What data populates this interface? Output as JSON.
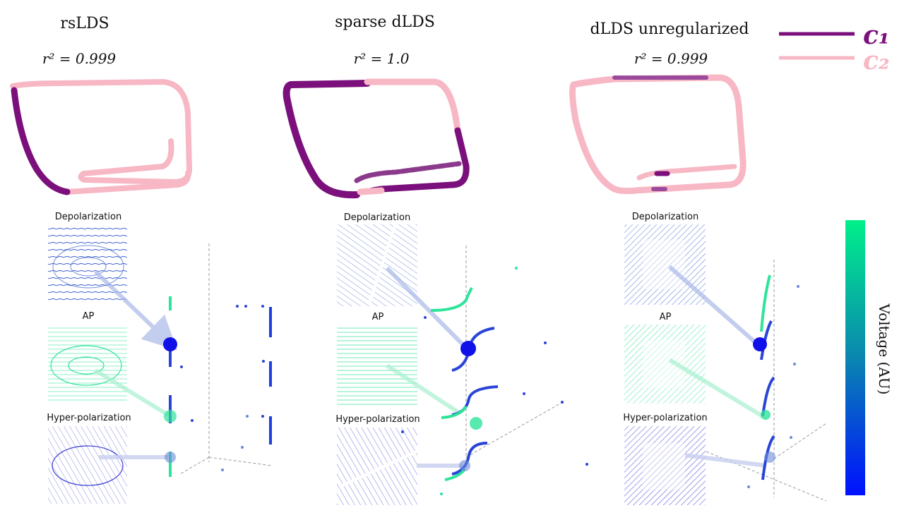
{
  "colors": {
    "c1": "#7b0f7b",
    "c2": "#f7b7c4",
    "depolarization": "#3a5fcf",
    "ap": "#2ee39a",
    "hyperpolarization": "#3a3ad6",
    "colorbar_top": "#00f08a",
    "colorbar_bottom": "#0010ff"
  },
  "legend": {
    "items": [
      {
        "label": "c₁",
        "color": "#7b0f7b"
      },
      {
        "label": "c₂",
        "color": "#f7b7c4"
      }
    ]
  },
  "panels": [
    {
      "title": "rsLDS",
      "r2_text": "r² = 0.999",
      "labels": {
        "top": "Depolarization",
        "mid": "AP",
        "bottom": "Hyper-polarization"
      }
    },
    {
      "title": "sparse dLDS",
      "r2_text": "r² = 1.0",
      "labels": {
        "top": "Depolarization",
        "mid": "AP",
        "bottom": "Hyper-polarization"
      }
    },
    {
      "title": "dLDS unregularized",
      "r2_text": "r² = 0.999",
      "labels": {
        "top": "Depolarization",
        "mid": "AP",
        "bottom": "Hyper-polarization"
      }
    }
  ],
  "colorbar": {
    "label": "Voltage (AU)"
  }
}
